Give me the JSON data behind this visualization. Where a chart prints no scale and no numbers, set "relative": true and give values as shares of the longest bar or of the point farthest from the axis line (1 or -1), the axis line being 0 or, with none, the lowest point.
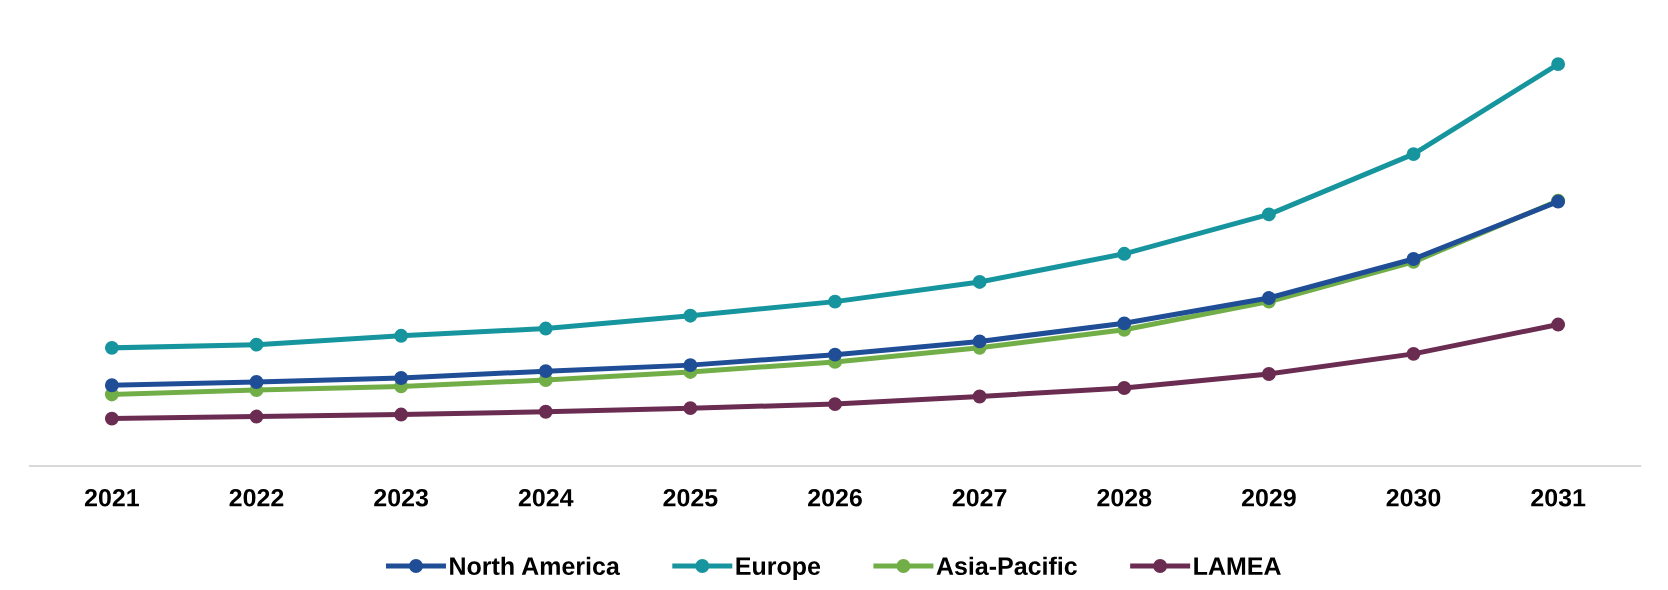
{
  "chart_data": {
    "type": "line",
    "relative": true,
    "categories": [
      "2021",
      "2022",
      "2023",
      "2024",
      "2025",
      "2026",
      "2027",
      "2028",
      "2029",
      "2030",
      "2031"
    ],
    "series": [
      {
        "name": "North America",
        "color": "#1f4e96",
        "values": [
          0.201,
          0.209,
          0.219,
          0.236,
          0.251,
          0.277,
          0.31,
          0.355,
          0.418,
          0.515,
          0.658
        ]
      },
      {
        "name": "Europe",
        "color": "#17959e",
        "values": [
          0.294,
          0.302,
          0.324,
          0.342,
          0.374,
          0.409,
          0.458,
          0.528,
          0.626,
          0.776,
          1
        ]
      },
      {
        "name": "Asia-Pacific",
        "color": "#72ae48",
        "values": [
          0.178,
          0.189,
          0.198,
          0.214,
          0.234,
          0.259,
          0.294,
          0.339,
          0.409,
          0.508,
          0.66
        ]
      },
      {
        "name": "LAMEA",
        "color": "#6b2c52",
        "values": [
          0.118,
          0.123,
          0.128,
          0.135,
          0.144,
          0.154,
          0.173,
          0.194,
          0.229,
          0.279,
          0.352
        ]
      }
    ],
    "marker": "circle",
    "line_style": "solid",
    "grid": false,
    "legend": "bottom",
    "tick_labels": "x"
  }
}
